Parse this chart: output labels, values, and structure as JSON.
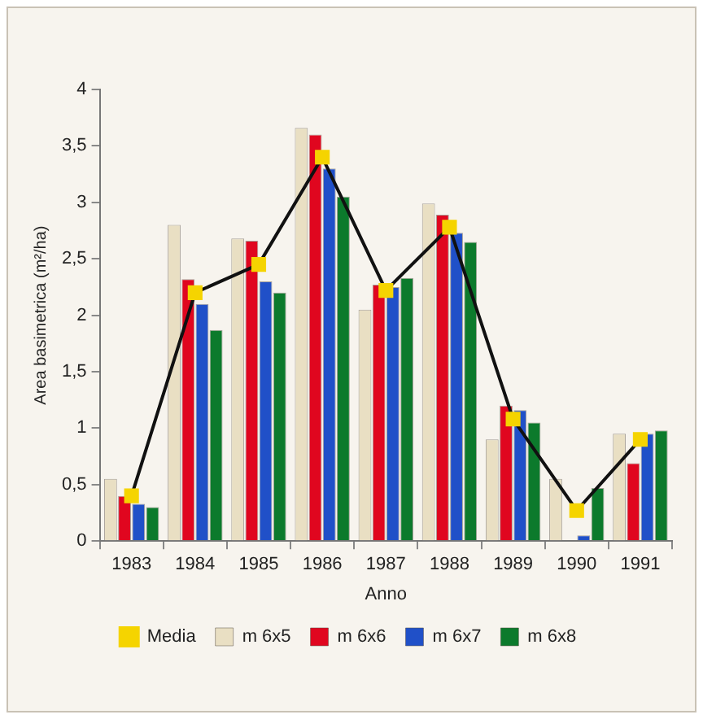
{
  "chart_data": {
    "type": "bar",
    "xlabel": "Anno",
    "ylabel": "Area basimetrica (m²/ha)",
    "categories": [
      "1983",
      "1984",
      "1985",
      "1986",
      "1987",
      "1988",
      "1989",
      "1990",
      "1991"
    ],
    "series": [
      {
        "name": "m 6x5",
        "color": "#e9dfc3",
        "values": [
          0.55,
          2.8,
          2.68,
          3.66,
          2.05,
          2.99,
          0.9,
          0.55,
          0.95
        ]
      },
      {
        "name": "m 6x6",
        "color": "#e0061f",
        "values": [
          0.4,
          2.32,
          2.66,
          3.6,
          2.27,
          2.89,
          1.2,
          0,
          0.69
        ]
      },
      {
        "name": "m 6x7",
        "color": "#2050c8",
        "values": [
          0.33,
          2.1,
          2.3,
          3.3,
          2.25,
          2.73,
          1.16,
          0.05,
          0.95
        ]
      },
      {
        "name": "m 6x8",
        "color": "#0c7a2c",
        "values": [
          0.3,
          1.87,
          2.2,
          3.05,
          2.33,
          2.65,
          1.05,
          0.47,
          0.98
        ]
      },
      {
        "name": "Media",
        "type": "line",
        "color": "#111111",
        "colors": [
          "#f5d400",
          "#f5d400",
          "#f5d400",
          "#f5d400",
          "#f5d400",
          "#f5d400",
          "#f5d400",
          "#f5d400",
          "#f5d400"
        ],
        "marker": "square",
        "values": [
          0.4,
          2.2,
          2.45,
          3.4,
          2.22,
          2.78,
          1.08,
          0.27,
          0.9
        ]
      }
    ],
    "ylim": [
      0,
      4
    ],
    "yticks": [
      0,
      {
        "value": 0.5,
        "label": "0,5"
      },
      1,
      {
        "value": 1.5,
        "label": "1,5"
      },
      2,
      {
        "value": 2.5,
        "label": "2,5"
      },
      3,
      {
        "value": 3.5,
        "label": "3,5"
      },
      4
    ],
    "grid": false,
    "legend": "bottom"
  }
}
